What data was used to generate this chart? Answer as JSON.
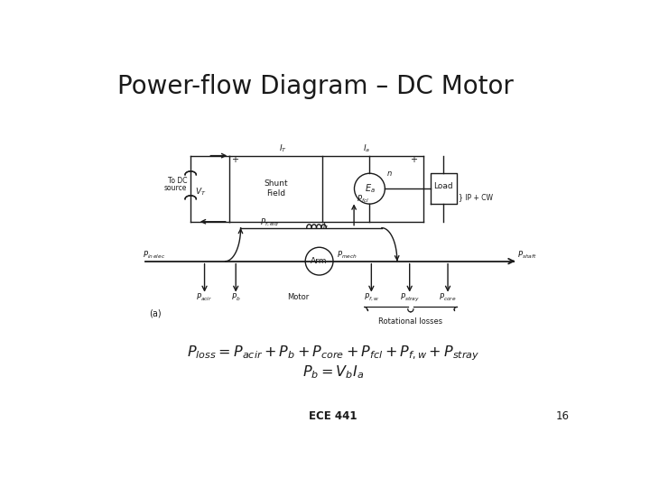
{
  "title": "Power-flow Diagram – DC Motor",
  "title_fontsize": 20,
  "background_color": "#ffffff",
  "text_color": "#1a1a1a",
  "line_color": "#1a1a1a",
  "footer_text": "ECE 441",
  "footer_page": "16",
  "label_motor": "Motor",
  "label_rotational": "Rotational losses",
  "label_a": "(a)"
}
